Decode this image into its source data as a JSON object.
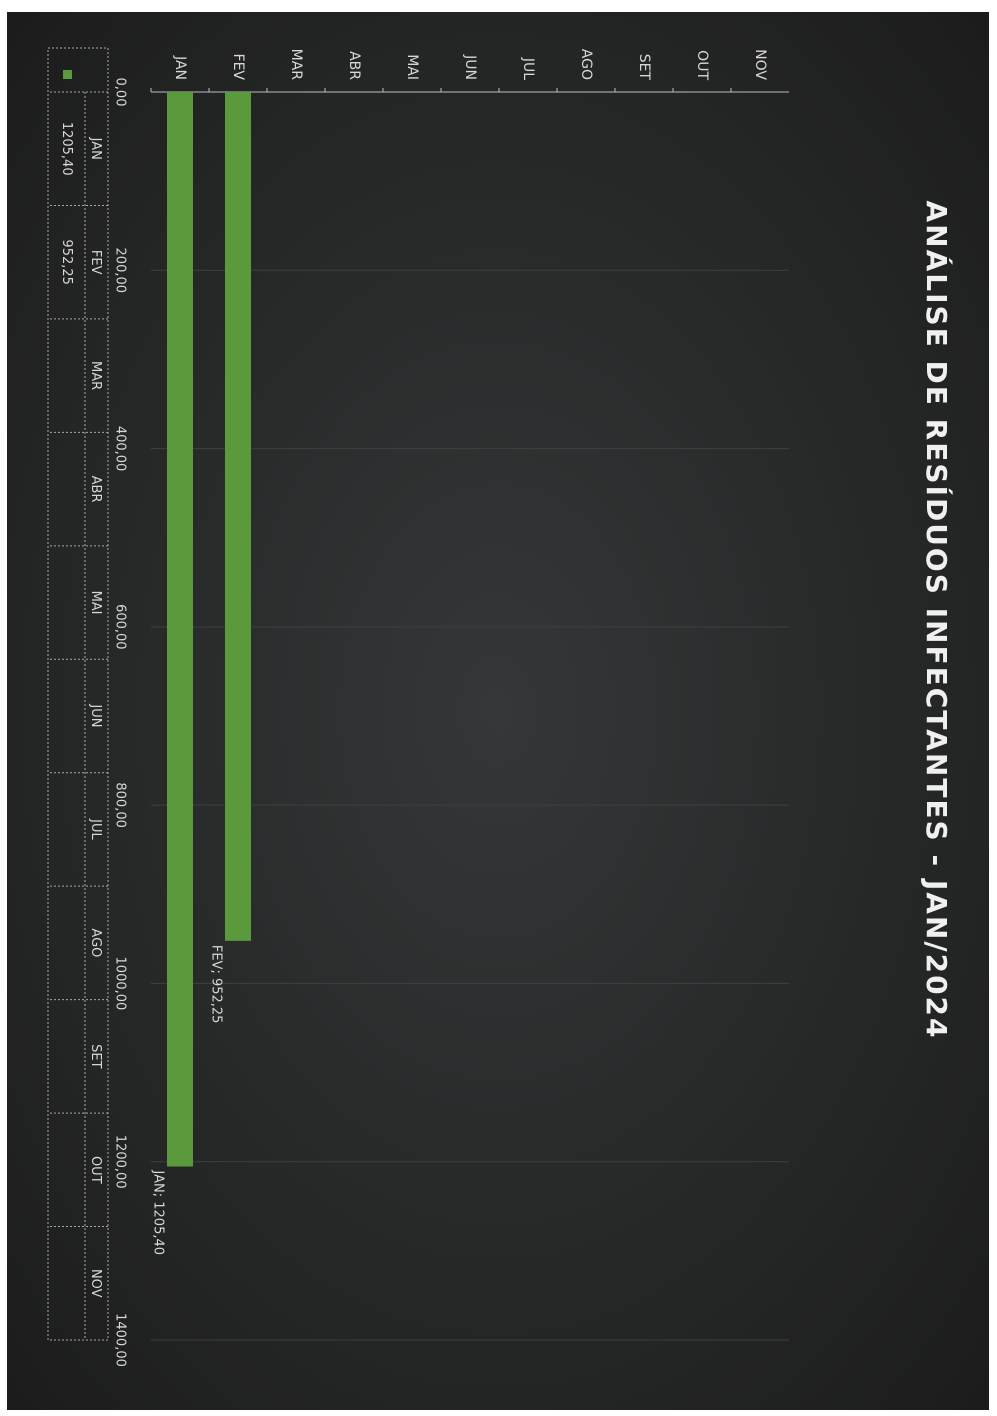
{
  "chart_data": {
    "type": "bar",
    "orientation": "horizontal",
    "title": "ANÁLISE DE RESÍDUOS INFECTANTES - JAN/2024",
    "categories": [
      "JAN",
      "FEV",
      "MAR",
      "ABR",
      "MAI",
      "JUN",
      "JUL",
      "AGO",
      "SET",
      "OUT",
      "NOV"
    ],
    "values": [
      1205.4,
      952.25,
      null,
      null,
      null,
      null,
      null,
      null,
      null,
      null,
      null
    ],
    "value_labels": [
      "JAN; 1205,40",
      "FEV; 952,25",
      null,
      null,
      null,
      null,
      null,
      null,
      null,
      null,
      null
    ],
    "table_values": [
      "1205,40",
      "952,25",
      null,
      null,
      null,
      null,
      null,
      null,
      null,
      null,
      null
    ],
    "color": "#5b9a3c",
    "xlim": [
      0,
      1400
    ],
    "xticks": [
      {
        "value": 0,
        "label": "0,00"
      },
      {
        "value": 200,
        "label": "200,00"
      },
      {
        "value": 400,
        "label": "400,00"
      },
      {
        "value": 600,
        "label": "600,00"
      },
      {
        "value": 800,
        "label": "800,00"
      },
      {
        "value": 1000,
        "label": "1000,00"
      },
      {
        "value": 1200,
        "label": "1200,00"
      },
      {
        "value": 1400,
        "label": "1400,00"
      }
    ],
    "grid": true
  }
}
